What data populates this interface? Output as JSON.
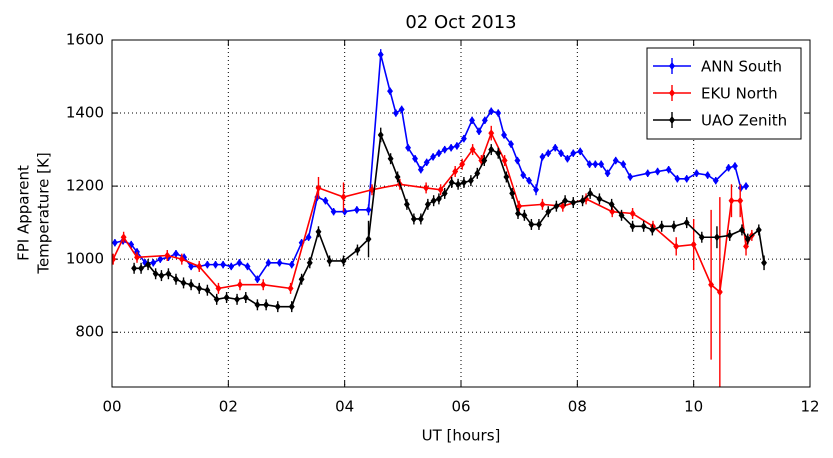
{
  "chart_data": {
    "type": "errorbar_line",
    "title": "02 Oct 2013",
    "xlabel": "UT [hours]",
    "ylabel": [
      "FPI Apparent",
      "Temperature [K]"
    ],
    "xlim": [
      0,
      12
    ],
    "ylim": [
      650,
      1600
    ],
    "xticks": [
      {
        "value": 0,
        "label": "00"
      },
      {
        "value": 2,
        "label": "02"
      },
      {
        "value": 4,
        "label": "04"
      },
      {
        "value": 6,
        "label": "06"
      },
      {
        "value": 8,
        "label": "08"
      },
      10,
      12
    ],
    "yticks": [
      800,
      1000,
      1200,
      1400,
      1600
    ],
    "grid": true,
    "legend": "upper right",
    "series": [
      {
        "name": "ANN South",
        "color": "#0000ff",
        "x": [
          0.05,
          0.19,
          0.33,
          0.43,
          0.57,
          0.71,
          0.83,
          0.97,
          1.1,
          1.24,
          1.36,
          1.5,
          1.64,
          1.78,
          1.91,
          2.05,
          2.19,
          2.33,
          2.5,
          2.69,
          2.88,
          3.09,
          3.26,
          3.38,
          3.53,
          3.67,
          3.81,
          4.0,
          4.21,
          4.41,
          4.62,
          4.78,
          4.88,
          4.98,
          5.09,
          5.21,
          5.31,
          5.41,
          5.52,
          5.62,
          5.72,
          5.83,
          5.93,
          6.05,
          6.19,
          6.31,
          6.41,
          6.52,
          6.64,
          6.74,
          6.86,
          6.97,
          7.07,
          7.17,
          7.29,
          7.4,
          7.5,
          7.62,
          7.72,
          7.83,
          7.93,
          8.05,
          8.21,
          8.31,
          8.41,
          8.52,
          8.66,
          8.79,
          8.91,
          9.21,
          9.38,
          9.57,
          9.72,
          9.88,
          10.05,
          10.24,
          10.38,
          10.6,
          10.71,
          10.81,
          10.9
        ],
        "values": [
          1045,
          1050,
          1040,
          1020,
          990,
          990,
          1000,
          1005,
          1015,
          1005,
          980,
          980,
          985,
          985,
          985,
          980,
          990,
          980,
          945,
          990,
          990,
          985,
          1045,
          1060,
          1170,
          1160,
          1130,
          1130,
          1135,
          1135,
          1560,
          1460,
          1400,
          1410,
          1305,
          1275,
          1245,
          1265,
          1280,
          1290,
          1300,
          1305,
          1310,
          1330,
          1380,
          1350,
          1380,
          1405,
          1400,
          1340,
          1315,
          1270,
          1230,
          1215,
          1190,
          1280,
          1290,
          1305,
          1290,
          1275,
          1290,
          1295,
          1260,
          1260,
          1260,
          1235,
          1270,
          1260,
          1225,
          1235,
          1240,
          1245,
          1220,
          1220,
          1235,
          1230,
          1215,
          1250,
          1255,
          1195,
          1200
        ],
        "errors": [
          10,
          10,
          10,
          10,
          10,
          10,
          10,
          10,
          10,
          10,
          10,
          10,
          10,
          10,
          10,
          10,
          10,
          10,
          10,
          10,
          10,
          10,
          10,
          10,
          10,
          10,
          10,
          10,
          10,
          15,
          15,
          10,
          10,
          10,
          10,
          10,
          10,
          10,
          10,
          10,
          10,
          10,
          10,
          10,
          10,
          10,
          10,
          10,
          10,
          10,
          10,
          10,
          10,
          10,
          15,
          10,
          10,
          10,
          10,
          10,
          10,
          10,
          10,
          10,
          10,
          10,
          10,
          10,
          10,
          10,
          10,
          10,
          10,
          10,
          10,
          10,
          10,
          10,
          10,
          10,
          10
        ]
      },
      {
        "name": "EKU North",
        "color": "#ff0000",
        "x": [
          0.02,
          0.2,
          0.43,
          0.95,
          1.2,
          1.5,
          1.83,
          2.2,
          2.6,
          3.07,
          3.55,
          3.98,
          4.47,
          4.95,
          5.4,
          5.65,
          5.9,
          6.02,
          6.2,
          6.35,
          6.52,
          6.75,
          7.0,
          7.4,
          7.75,
          8.15,
          8.6,
          8.95,
          9.3,
          9.7,
          10.0,
          10.3,
          10.45,
          10.65,
          10.8,
          10.9,
          11.0
        ],
        "values": [
          1000,
          1060,
          1005,
          1010,
          1000,
          980,
          920,
          930,
          930,
          920,
          1195,
          1170,
          1190,
          1205,
          1195,
          1190,
          1240,
          1260,
          1300,
          1270,
          1345,
          1270,
          1145,
          1150,
          1145,
          1165,
          1130,
          1125,
          1090,
          1035,
          1040,
          930,
          910,
          1160,
          1160,
          1035,
          1065
        ],
        "errors": [
          15,
          15,
          15,
          15,
          15,
          15,
          15,
          15,
          15,
          15,
          30,
          40,
          15,
          15,
          15,
          15,
          15,
          15,
          15,
          15,
          20,
          15,
          15,
          15,
          15,
          15,
          15,
          15,
          15,
          25,
          70,
          205,
          260,
          45,
          45,
          25,
          15
        ]
      },
      {
        "name": "UAO Zenith",
        "color": "#000000",
        "x": [
          0.38,
          0.5,
          0.62,
          0.75,
          0.85,
          0.97,
          1.1,
          1.23,
          1.36,
          1.5,
          1.64,
          1.8,
          1.97,
          2.15,
          2.3,
          2.5,
          2.65,
          2.85,
          3.09,
          3.26,
          3.4,
          3.55,
          3.74,
          3.98,
          4.22,
          4.41,
          4.62,
          4.79,
          4.91,
          5.07,
          5.19,
          5.31,
          5.43,
          5.53,
          5.62,
          5.72,
          5.84,
          5.95,
          6.05,
          6.17,
          6.28,
          6.4,
          6.52,
          6.64,
          6.78,
          6.88,
          6.98,
          7.09,
          7.21,
          7.34,
          7.5,
          7.64,
          7.79,
          7.93,
          8.09,
          8.22,
          8.38,
          8.59,
          8.76,
          8.95,
          9.14,
          9.29,
          9.45,
          9.66,
          9.88,
          10.14,
          10.4,
          10.62,
          10.83,
          10.93,
          11.12,
          11.21
        ],
        "values": [
          975,
          975,
          985,
          960,
          955,
          960,
          945,
          935,
          930,
          920,
          915,
          890,
          895,
          890,
          895,
          875,
          875,
          870,
          870,
          945,
          990,
          1075,
          995,
          995,
          1025,
          1055,
          1340,
          1275,
          1225,
          1150,
          1110,
          1110,
          1150,
          1160,
          1165,
          1180,
          1210,
          1205,
          1210,
          1215,
          1235,
          1270,
          1300,
          1290,
          1225,
          1180,
          1125,
          1120,
          1095,
          1095,
          1130,
          1145,
          1160,
          1155,
          1160,
          1180,
          1165,
          1150,
          1120,
          1090,
          1090,
          1080,
          1090,
          1090,
          1100,
          1060,
          1060,
          1065,
          1080,
          1055,
          1080,
          990
        ],
        "errors": [
          15,
          15,
          15,
          15,
          15,
          15,
          15,
          15,
          15,
          15,
          15,
          15,
          15,
          15,
          15,
          15,
          15,
          15,
          15,
          15,
          15,
          15,
          15,
          15,
          15,
          50,
          20,
          15,
          15,
          15,
          15,
          15,
          15,
          15,
          15,
          15,
          15,
          15,
          15,
          15,
          15,
          15,
          15,
          15,
          15,
          15,
          15,
          15,
          15,
          15,
          15,
          15,
          15,
          15,
          15,
          15,
          15,
          15,
          15,
          15,
          15,
          15,
          15,
          15,
          15,
          15,
          30,
          15,
          15,
          15,
          15,
          20
        ]
      }
    ]
  }
}
